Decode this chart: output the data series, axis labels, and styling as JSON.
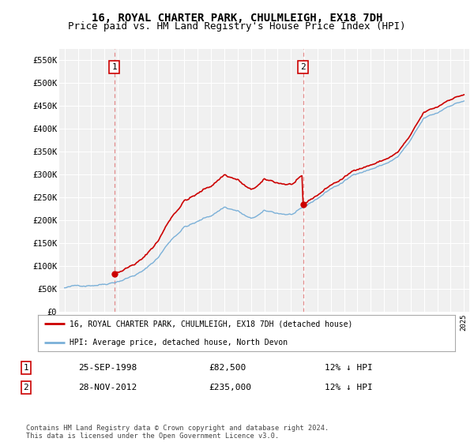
{
  "title": "16, ROYAL CHARTER PARK, CHULMLEIGH, EX18 7DH",
  "subtitle": "Price paid vs. HM Land Registry's House Price Index (HPI)",
  "ylim": [
    0,
    575000
  ],
  "yticks": [
    0,
    50000,
    100000,
    150000,
    200000,
    250000,
    300000,
    350000,
    400000,
    450000,
    500000,
    550000
  ],
  "ytick_labels": [
    "£0",
    "£50K",
    "£100K",
    "£150K",
    "£200K",
    "£250K",
    "£300K",
    "£350K",
    "£400K",
    "£450K",
    "£500K",
    "£550K"
  ],
  "sale1_date_num": 1998.73,
  "sale1_price": 82500,
  "sale1_label": "1",
  "sale2_date_num": 2012.91,
  "sale2_price": 235000,
  "sale2_label": "2",
  "hpi_color": "#7ab0d8",
  "sale_color": "#cc0000",
  "dashed_color": "#cc0000",
  "background_color": "#ffffff",
  "plot_bg_color": "#f0f0f0",
  "grid_color": "#ffffff",
  "legend_entry1": "16, ROYAL CHARTER PARK, CHULMLEIGH, EX18 7DH (detached house)",
  "legend_entry2": "HPI: Average price, detached house, North Devon",
  "table_row1": [
    "1",
    "25-SEP-1998",
    "£82,500",
    "12% ↓ HPI"
  ],
  "table_row2": [
    "2",
    "28-NOV-2012",
    "£235,000",
    "12% ↓ HPI"
  ],
  "footnote": "Contains HM Land Registry data © Crown copyright and database right 2024.\nThis data is licensed under the Open Government Licence v3.0.",
  "title_fontsize": 10,
  "subtitle_fontsize": 9,
  "hpi_base_values": {
    "1995": 52000,
    "1996": 55000,
    "1997": 60000,
    "1998": 65000,
    "1999": 74000,
    "2000": 85000,
    "2001": 98000,
    "2002": 125000,
    "2003": 165000,
    "2004": 195000,
    "2005": 205000,
    "2006": 218000,
    "2007": 238000,
    "2008": 230000,
    "2009": 210000,
    "2010": 225000,
    "2011": 220000,
    "2012": 218000,
    "2013": 228000,
    "2014": 248000,
    "2015": 270000,
    "2016": 285000,
    "2017": 305000,
    "2018": 315000,
    "2019": 325000,
    "2020": 340000,
    "2021": 375000,
    "2022": 420000,
    "2023": 430000,
    "2024": 450000,
    "2025": 460000
  }
}
